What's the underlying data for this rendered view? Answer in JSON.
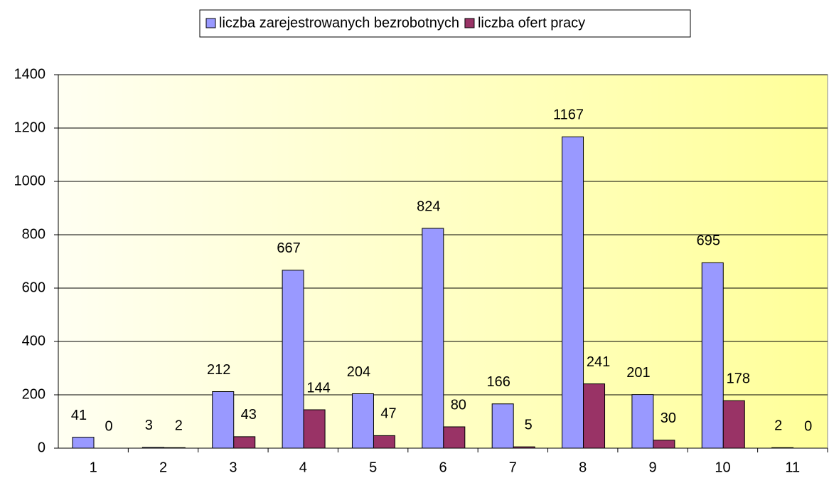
{
  "chart_data": {
    "type": "bar",
    "categories": [
      "1",
      "2",
      "3",
      "4",
      "5",
      "6",
      "7",
      "8",
      "9",
      "10",
      "11"
    ],
    "series": [
      {
        "name": "liczba zarejestrowanych bezrobotnych",
        "color": "#9999ff",
        "values": [
          41,
          3,
          212,
          667,
          204,
          824,
          166,
          1167,
          201,
          695,
          2
        ]
      },
      {
        "name": "liczba ofert pracy",
        "color": "#993366",
        "values": [
          0,
          2,
          43,
          144,
          47,
          80,
          5,
          241,
          30,
          178,
          0
        ]
      }
    ],
    "ylim": [
      0,
      1400
    ],
    "yticks": [
      0,
      200,
      400,
      600,
      800,
      1000,
      1200,
      1400
    ],
    "grid": true,
    "legend": "top"
  }
}
